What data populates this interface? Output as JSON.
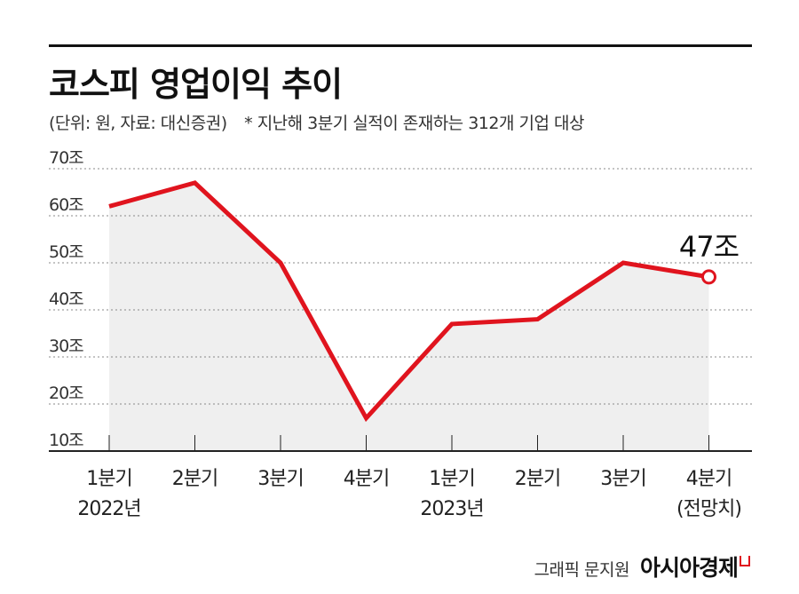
{
  "title": "코스피 영업이익 추이",
  "subtitle": "(단위: 원, 자료: 대신증권)",
  "note": "* 지난해 3분기 실적이 존재하는 312개 기업 대상",
  "credit": {
    "by": "그래픽 문지원",
    "brand": "아시아경제"
  },
  "colors": {
    "line": "#e0141e",
    "area": "#efefef",
    "grid": "#888888",
    "axis": "#222222"
  },
  "chart_data": {
    "type": "line",
    "ylim": [
      10,
      70
    ],
    "yticks": [
      10,
      20,
      30,
      40,
      50,
      60,
      70
    ],
    "ytick_labels": [
      "10조",
      "20조",
      "30조",
      "40조",
      "50조",
      "60조",
      "70조"
    ],
    "categories": [
      [
        "1분기",
        "2022년"
      ],
      [
        "2분기"
      ],
      [
        "3분기"
      ],
      [
        "4분기"
      ],
      [
        "1분기",
        "2023년"
      ],
      [
        "2분기"
      ],
      [
        "3분기"
      ],
      [
        "4분기",
        "(전망치)"
      ]
    ],
    "values": [
      62,
      67,
      50,
      17,
      37,
      38,
      50,
      47
    ],
    "last_point_label": "47조",
    "grid": true
  }
}
